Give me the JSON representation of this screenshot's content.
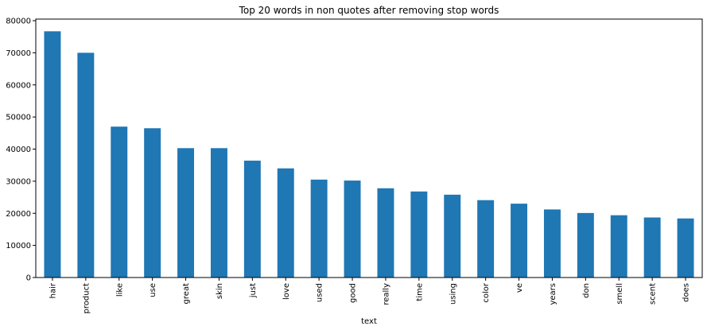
{
  "chart_data": {
    "type": "bar",
    "title": "Top 20 words in  non quotes after removing stop words",
    "xlabel": "text",
    "ylabel": "",
    "categories": [
      "hair",
      "product",
      "like",
      "use",
      "great",
      "skin",
      "just",
      "love",
      "used",
      "good",
      "really",
      "time",
      "using",
      "color",
      "ve",
      "years",
      "don",
      "smell",
      "scent",
      "does"
    ],
    "values": [
      76700,
      70000,
      47000,
      46500,
      40300,
      40300,
      36400,
      34000,
      30500,
      30200,
      27800,
      26800,
      25800,
      24100,
      23000,
      21200,
      20100,
      19400,
      18700,
      18400
    ],
    "ylim": [
      0,
      80500
    ],
    "yticks": [
      0,
      10000,
      20000,
      30000,
      40000,
      50000,
      60000,
      70000,
      80000
    ],
    "grid": false,
    "legend": "none",
    "colors": {
      "bar": "#1f77b4",
      "axis": "#000000",
      "background": "#ffffff"
    }
  }
}
